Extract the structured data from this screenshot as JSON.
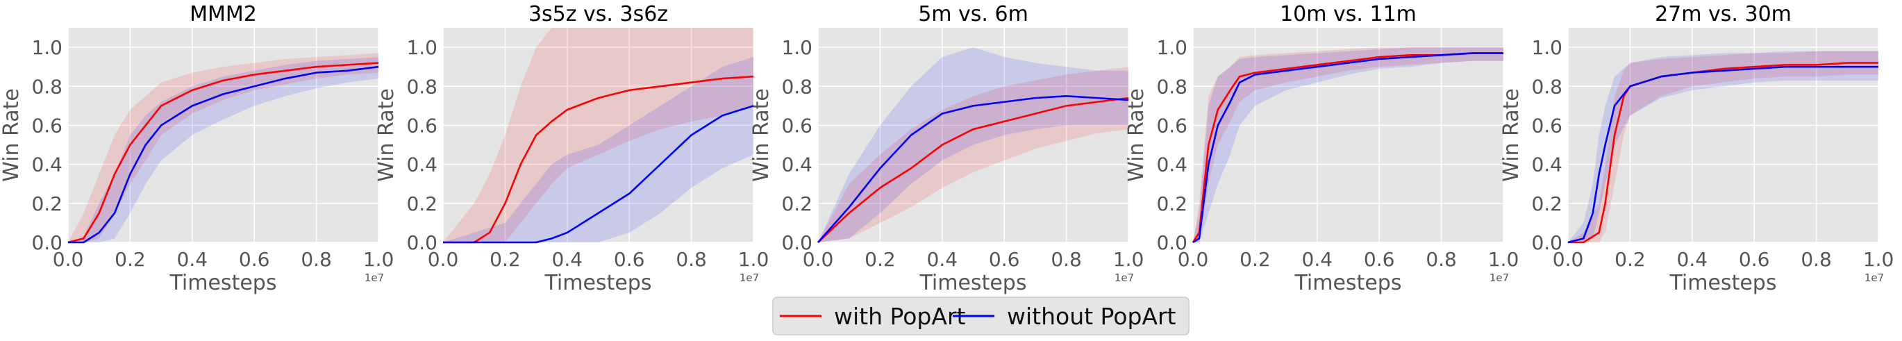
{
  "chart_data": [
    {
      "type": "line",
      "title": "MMM2",
      "xlabel": "Timesteps",
      "ylabel": "Win Rate",
      "xlim": [
        0,
        1.0
      ],
      "ylim": [
        0,
        1.1
      ],
      "x_scale_label": "1e7",
      "xticks": [
        "0.0",
        "0.2",
        "0.4",
        "0.6",
        "0.8",
        "1.0"
      ],
      "yticks": [
        "0.0",
        "0.2",
        "0.4",
        "0.6",
        "0.8",
        "1.0"
      ],
      "grid": true,
      "series": [
        {
          "name": "with PopArt",
          "color": "#ff0000",
          "x": [
            0.0,
            0.05,
            0.1,
            0.15,
            0.2,
            0.25,
            0.3,
            0.4,
            0.5,
            0.6,
            0.7,
            0.8,
            0.9,
            1.0
          ],
          "y": [
            0.0,
            0.02,
            0.15,
            0.35,
            0.5,
            0.6,
            0.7,
            0.78,
            0.83,
            0.86,
            0.88,
            0.9,
            0.91,
            0.92
          ],
          "lower": [
            0.0,
            0.0,
            0.02,
            0.15,
            0.3,
            0.42,
            0.55,
            0.66,
            0.73,
            0.78,
            0.81,
            0.84,
            0.86,
            0.87
          ],
          "upper": [
            0.0,
            0.15,
            0.35,
            0.55,
            0.68,
            0.75,
            0.82,
            0.87,
            0.9,
            0.92,
            0.94,
            0.95,
            0.96,
            0.97
          ]
        },
        {
          "name": "without PopArt",
          "color": "#0000ff",
          "x": [
            0.0,
            0.05,
            0.1,
            0.15,
            0.2,
            0.25,
            0.3,
            0.4,
            0.5,
            0.6,
            0.7,
            0.8,
            0.9,
            1.0
          ],
          "y": [
            0.0,
            0.0,
            0.05,
            0.15,
            0.35,
            0.5,
            0.6,
            0.7,
            0.76,
            0.8,
            0.84,
            0.87,
            0.88,
            0.9
          ],
          "lower": [
            0.0,
            0.0,
            0.0,
            0.02,
            0.15,
            0.3,
            0.42,
            0.55,
            0.63,
            0.7,
            0.75,
            0.79,
            0.82,
            0.84
          ],
          "upper": [
            0.0,
            0.03,
            0.2,
            0.35,
            0.55,
            0.65,
            0.72,
            0.8,
            0.85,
            0.88,
            0.91,
            0.93,
            0.94,
            0.95
          ]
        }
      ]
    },
    {
      "type": "line",
      "title": "3s5z vs. 3s6z",
      "xlabel": "Timesteps",
      "ylabel": "Win Rate",
      "xlim": [
        0,
        1.0
      ],
      "ylim": [
        0,
        1.1
      ],
      "x_scale_label": "1e7",
      "xticks": [
        "0.0",
        "0.2",
        "0.4",
        "0.6",
        "0.8",
        "1.0"
      ],
      "yticks": [
        "0.0",
        "0.2",
        "0.4",
        "0.6",
        "0.8",
        "1.0"
      ],
      "grid": true,
      "series": [
        {
          "name": "with PopArt",
          "color": "#ff0000",
          "x": [
            0.0,
            0.1,
            0.15,
            0.2,
            0.25,
            0.3,
            0.35,
            0.4,
            0.5,
            0.6,
            0.7,
            0.8,
            0.9,
            1.0
          ],
          "y": [
            0.0,
            0.0,
            0.05,
            0.2,
            0.4,
            0.55,
            0.62,
            0.68,
            0.74,
            0.78,
            0.8,
            0.82,
            0.84,
            0.85
          ],
          "lower": [
            0.0,
            0.0,
            0.0,
            0.0,
            0.1,
            0.2,
            0.3,
            0.38,
            0.45,
            0.52,
            0.58,
            0.62,
            0.65,
            0.7
          ],
          "upper": [
            0.0,
            0.2,
            0.35,
            0.55,
            0.8,
            1.0,
            1.1,
            1.1,
            1.1,
            1.1,
            1.1,
            1.1,
            1.1,
            1.1
          ]
        },
        {
          "name": "without PopArt",
          "color": "#0000ff",
          "x": [
            0.0,
            0.2,
            0.3,
            0.35,
            0.4,
            0.5,
            0.6,
            0.7,
            0.8,
            0.9,
            1.0
          ],
          "y": [
            0.0,
            0.0,
            0.0,
            0.02,
            0.05,
            0.15,
            0.25,
            0.4,
            0.55,
            0.65,
            0.7
          ],
          "lower": [
            0.0,
            0.0,
            0.0,
            0.0,
            0.0,
            0.0,
            0.05,
            0.15,
            0.28,
            0.38,
            0.45
          ],
          "upper": [
            0.0,
            0.1,
            0.3,
            0.4,
            0.45,
            0.5,
            0.6,
            0.7,
            0.8,
            0.9,
            0.95
          ]
        }
      ]
    },
    {
      "type": "line",
      "title": "5m vs. 6m",
      "xlabel": "Timesteps",
      "ylabel": "Win Rate",
      "xlim": [
        0,
        1.0
      ],
      "ylim": [
        0,
        1.1
      ],
      "x_scale_label": "1e7",
      "xticks": [
        "0.0",
        "0.2",
        "0.4",
        "0.6",
        "0.8",
        "1.0"
      ],
      "yticks": [
        "0.0",
        "0.2",
        "0.4",
        "0.6",
        "0.8",
        "1.0"
      ],
      "grid": true,
      "series": [
        {
          "name": "with PopArt",
          "color": "#ff0000",
          "x": [
            0.0,
            0.1,
            0.2,
            0.3,
            0.4,
            0.5,
            0.6,
            0.7,
            0.8,
            0.9,
            1.0
          ],
          "y": [
            0.0,
            0.15,
            0.28,
            0.38,
            0.5,
            0.58,
            0.62,
            0.66,
            0.7,
            0.72,
            0.74
          ],
          "lower": [
            0.0,
            0.02,
            0.1,
            0.18,
            0.28,
            0.36,
            0.42,
            0.48,
            0.52,
            0.56,
            0.58
          ],
          "upper": [
            0.0,
            0.3,
            0.45,
            0.58,
            0.68,
            0.75,
            0.8,
            0.83,
            0.86,
            0.88,
            0.9
          ]
        },
        {
          "name": "without PopArt",
          "color": "#0000ff",
          "x": [
            0.0,
            0.1,
            0.2,
            0.3,
            0.4,
            0.5,
            0.6,
            0.7,
            0.8,
            0.9,
            1.0
          ],
          "y": [
            0.0,
            0.18,
            0.38,
            0.55,
            0.66,
            0.7,
            0.72,
            0.74,
            0.75,
            0.74,
            0.73
          ],
          "lower": [
            0.0,
            0.02,
            0.15,
            0.3,
            0.42,
            0.5,
            0.55,
            0.58,
            0.6,
            0.6,
            0.6
          ],
          "upper": [
            0.0,
            0.35,
            0.6,
            0.8,
            0.95,
            1.0,
            0.95,
            0.92,
            0.9,
            0.88,
            0.88
          ]
        }
      ]
    },
    {
      "type": "line",
      "title": "10m vs. 11m",
      "xlabel": "Timesteps",
      "ylabel": "Win Rate",
      "xlim": [
        0,
        1.0
      ],
      "ylim": [
        0,
        1.1
      ],
      "x_scale_label": "1e7",
      "xticks": [
        "0.0",
        "0.2",
        "0.4",
        "0.6",
        "0.8",
        "1.0"
      ],
      "yticks": [
        "0.0",
        "0.2",
        "0.4",
        "0.6",
        "0.8",
        "1.0"
      ],
      "grid": true,
      "series": [
        {
          "name": "with PopArt",
          "color": "#ff0000",
          "x": [
            0.0,
            0.02,
            0.05,
            0.08,
            0.12,
            0.15,
            0.2,
            0.3,
            0.4,
            0.5,
            0.6,
            0.7,
            0.8,
            0.9,
            1.0
          ],
          "y": [
            0.0,
            0.05,
            0.5,
            0.68,
            0.78,
            0.85,
            0.87,
            0.89,
            0.91,
            0.93,
            0.95,
            0.96,
            0.96,
            0.97,
            0.97
          ],
          "lower": [
            0.0,
            0.0,
            0.3,
            0.5,
            0.62,
            0.72,
            0.78,
            0.82,
            0.85,
            0.88,
            0.9,
            0.91,
            0.92,
            0.93,
            0.93
          ],
          "upper": [
            0.0,
            0.2,
            0.75,
            0.85,
            0.9,
            0.95,
            0.96,
            0.97,
            0.98,
            0.99,
            1.0,
            1.0,
            1.0,
            1.0,
            1.0
          ]
        },
        {
          "name": "without PopArt",
          "color": "#0000ff",
          "x": [
            0.0,
            0.02,
            0.05,
            0.08,
            0.12,
            0.15,
            0.2,
            0.3,
            0.4,
            0.5,
            0.6,
            0.7,
            0.8,
            0.9,
            1.0
          ],
          "y": [
            0.0,
            0.02,
            0.4,
            0.6,
            0.72,
            0.82,
            0.86,
            0.88,
            0.9,
            0.92,
            0.94,
            0.95,
            0.96,
            0.97,
            0.97
          ],
          "lower": [
            0.0,
            0.0,
            0.15,
            0.3,
            0.45,
            0.6,
            0.7,
            0.78,
            0.82,
            0.86,
            0.89,
            0.9,
            0.92,
            0.93,
            0.93
          ],
          "upper": [
            0.0,
            0.15,
            0.7,
            0.85,
            0.9,
            0.94,
            0.95,
            0.96,
            0.97,
            0.98,
            0.99,
            1.0,
            1.0,
            1.0,
            1.0
          ]
        }
      ]
    },
    {
      "type": "line",
      "title": "27m vs. 30m",
      "xlabel": "Timesteps",
      "ylabel": "Win Rate",
      "xlim": [
        0,
        1.0
      ],
      "ylim": [
        0,
        1.1
      ],
      "x_scale_label": "1e7",
      "xticks": [
        "0.0",
        "0.2",
        "0.4",
        "0.6",
        "0.8",
        "1.0"
      ],
      "yticks": [
        "0.0",
        "0.2",
        "0.4",
        "0.6",
        "0.8",
        "1.0"
      ],
      "grid": true,
      "series": [
        {
          "name": "with PopArt",
          "color": "#ff0000",
          "x": [
            0.0,
            0.05,
            0.1,
            0.12,
            0.15,
            0.18,
            0.2,
            0.3,
            0.4,
            0.5,
            0.6,
            0.7,
            0.8,
            0.9,
            1.0
          ],
          "y": [
            0.0,
            0.0,
            0.05,
            0.2,
            0.55,
            0.75,
            0.8,
            0.85,
            0.87,
            0.89,
            0.9,
            0.91,
            0.91,
            0.92,
            0.92
          ],
          "lower": [
            0.0,
            0.0,
            0.0,
            0.05,
            0.3,
            0.55,
            0.65,
            0.75,
            0.8,
            0.82,
            0.84,
            0.85,
            0.85,
            0.86,
            0.86
          ],
          "upper": [
            0.0,
            0.05,
            0.2,
            0.4,
            0.75,
            0.88,
            0.92,
            0.94,
            0.95,
            0.96,
            0.97,
            0.97,
            0.98,
            0.98,
            0.98
          ]
        },
        {
          "name": "without PopArt",
          "color": "#0000ff",
          "x": [
            0.0,
            0.05,
            0.08,
            0.1,
            0.12,
            0.15,
            0.2,
            0.3,
            0.4,
            0.5,
            0.6,
            0.7,
            0.8,
            0.9,
            1.0
          ],
          "y": [
            0.0,
            0.02,
            0.15,
            0.35,
            0.5,
            0.7,
            0.8,
            0.85,
            0.87,
            0.88,
            0.89,
            0.9,
            0.9,
            0.9,
            0.9
          ],
          "lower": [
            0.0,
            0.0,
            0.02,
            0.15,
            0.3,
            0.5,
            0.65,
            0.74,
            0.78,
            0.8,
            0.82,
            0.83,
            0.83,
            0.83,
            0.83
          ],
          "upper": [
            0.0,
            0.1,
            0.3,
            0.55,
            0.7,
            0.85,
            0.92,
            0.95,
            0.96,
            0.97,
            0.97,
            0.98,
            0.98,
            0.98,
            0.98
          ]
        }
      ]
    }
  ],
  "legend": {
    "position": "bottom-center",
    "items": [
      {
        "label": "with PopArt",
        "color": "#ff0000"
      },
      {
        "label": "without PopArt",
        "color": "#0000ff"
      }
    ]
  }
}
